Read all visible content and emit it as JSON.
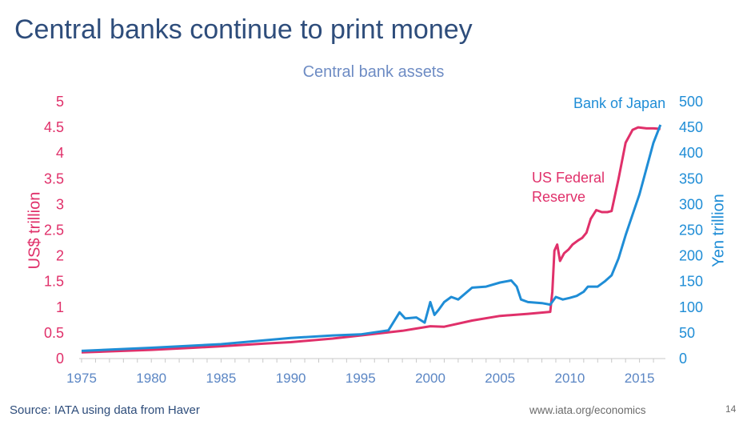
{
  "slide": {
    "title": "Central banks continue to print money",
    "source": "Source: IATA using data from Haver",
    "url": "www.iata.org/economics",
    "page_number": "14"
  },
  "colors": {
    "fed": "#e0306a",
    "boj": "#1f8dd6",
    "title": "#2e4d7b",
    "chart_title": "#6e8cc4",
    "x_ticks": "#5b86c4"
  },
  "chart_data": {
    "type": "line",
    "title": "Central bank assets",
    "xlabel": "",
    "y_left_label": "US$ trillion",
    "y_right_label": "Yen trillion",
    "xlim": [
      1975,
      2016.8
    ],
    "xticks": [
      1975,
      1980,
      1985,
      1990,
      1995,
      2000,
      2005,
      2010,
      2015
    ],
    "ylim_left": [
      0,
      5
    ],
    "yticks_left": [
      "0",
      "0.5",
      "1",
      "1.5",
      "2",
      "2.5",
      "3",
      "3.5",
      "4",
      "4.5",
      "5"
    ],
    "ylim_right": [
      0,
      500
    ],
    "yticks_right": [
      "0",
      "50",
      "100",
      "150",
      "200",
      "250",
      "300",
      "350",
      "400",
      "450",
      "500"
    ],
    "grid": false,
    "series": [
      {
        "name": "US Federal Reserve",
        "axis": "left",
        "label_lines": [
          "US Federal",
          "Reserve"
        ],
        "x": [
          1975,
          1977,
          1980,
          1983,
          1985,
          1988,
          1990,
          1993,
          1995,
          1998,
          2000,
          2001,
          2003,
          2005,
          2007,
          2008.6,
          2008.75,
          2008.9,
          2009.1,
          2009.3,
          2009.6,
          2009.9,
          2010.2,
          2010.6,
          2010.9,
          2011.2,
          2011.5,
          2011.9,
          2012.3,
          2012.7,
          2013.0,
          2013.5,
          2014.0,
          2014.5,
          2014.9,
          2015.5,
          2016.0,
          2016.5
        ],
        "values": [
          0.12,
          0.14,
          0.17,
          0.21,
          0.24,
          0.29,
          0.32,
          0.39,
          0.45,
          0.54,
          0.63,
          0.62,
          0.74,
          0.83,
          0.87,
          0.91,
          1.3,
          2.1,
          2.22,
          1.9,
          2.05,
          2.12,
          2.22,
          2.3,
          2.35,
          2.45,
          2.72,
          2.89,
          2.85,
          2.85,
          2.87,
          3.5,
          4.2,
          4.45,
          4.5,
          4.48,
          4.48,
          4.47
        ]
      },
      {
        "name": "Bank of Japan",
        "axis": "right",
        "label_lines": [
          "Bank of Japan"
        ],
        "x": [
          1975,
          1980,
          1985,
          1990,
          1993,
          1995,
          1997,
          1997.8,
          1998.2,
          1999,
          1999.6,
          2000,
          2000.3,
          2000.6,
          2001,
          2001.5,
          2002,
          2003,
          2004,
          2005,
          2005.8,
          2006.2,
          2006.5,
          2007,
          2008,
          2008.6,
          2009.0,
          2009.5,
          2010,
          2010.5,
          2011,
          2011.3,
          2012,
          2012.5,
          2013.0,
          2013.5,
          2014,
          2014.5,
          2015,
          2015.5,
          2016,
          2016.5
        ],
        "values": [
          15,
          21,
          28,
          40,
          45,
          47,
          55,
          90,
          78,
          80,
          70,
          110,
          85,
          95,
          110,
          120,
          115,
          138,
          140,
          148,
          152,
          140,
          115,
          110,
          108,
          105,
          120,
          115,
          118,
          122,
          130,
          140,
          140,
          150,
          162,
          195,
          240,
          280,
          320,
          370,
          420,
          455
        ]
      }
    ]
  }
}
